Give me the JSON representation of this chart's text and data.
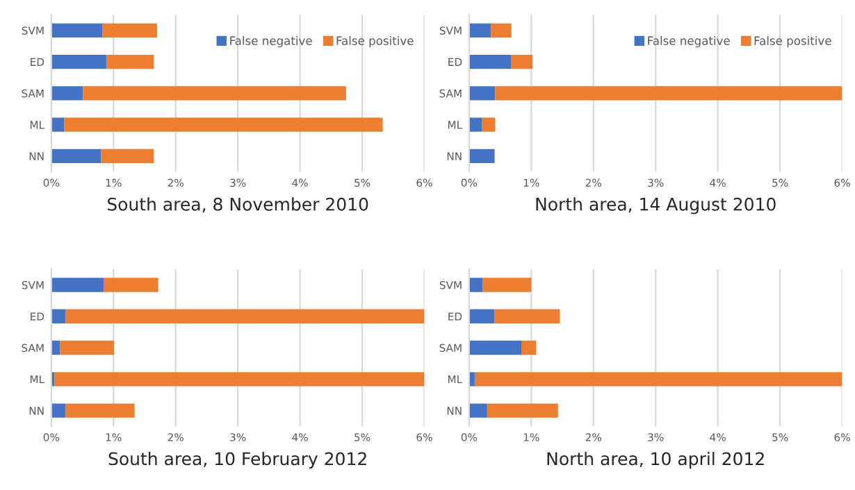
{
  "chart_data": [
    {
      "type": "bar",
      "orientation": "horizontal",
      "stacked": true,
      "title": "South area, 8 November 2010",
      "categories": [
        "SVM",
        "ED",
        "SAM",
        "ML",
        "NN"
      ],
      "series": [
        {
          "name": "False negative",
          "color": "#4472c4",
          "values": [
            0.82,
            0.89,
            0.51,
            0.21,
            0.8
          ]
        },
        {
          "name": "False positive",
          "color": "#ed7d31",
          "values": [
            0.88,
            0.76,
            4.23,
            5.12,
            0.85
          ]
        }
      ],
      "xlim": [
        0,
        6
      ],
      "xticks": [
        {
          "value": 0,
          "label": "0%"
        },
        {
          "value": 1,
          "label": "1%"
        },
        {
          "value": 2,
          "label": "2%"
        },
        {
          "value": 3,
          "label": "3%"
        },
        {
          "value": 4,
          "label": "4%"
        },
        {
          "value": 5,
          "label": "5%"
        },
        {
          "value": 6,
          "label": "6%"
        }
      ],
      "grid": "x",
      "legend": "top right"
    },
    {
      "type": "bar",
      "orientation": "horizontal",
      "stacked": true,
      "title": "North area, 14 August 2010",
      "categories": [
        "SVM",
        "ED",
        "SAM",
        "ML",
        "NN"
      ],
      "series": [
        {
          "name": "False negative",
          "color": "#4472c4",
          "values": [
            0.35,
            0.68,
            0.42,
            0.21,
            0.41
          ]
        },
        {
          "name": "False positive",
          "color": "#ed7d31",
          "values": [
            0.33,
            0.34,
            5.58,
            0.21,
            null
          ]
        }
      ],
      "xlim": [
        0,
        6
      ],
      "xticks": [
        {
          "value": 0,
          "label": "0%"
        },
        {
          "value": 1,
          "label": "1%"
        },
        {
          "value": 2,
          "label": "2%"
        },
        {
          "value": 3,
          "label": "3%"
        },
        {
          "value": 4,
          "label": "4%"
        },
        {
          "value": 5,
          "label": "5%"
        },
        {
          "value": 6,
          "label": "6%"
        }
      ],
      "grid": "x",
      "legend": "top right"
    },
    {
      "type": "bar",
      "orientation": "horizontal",
      "stacked": true,
      "title": "South area, 10 February 2012",
      "categories": [
        "SVM",
        "ED",
        "SAM",
        "ML",
        "NN"
      ],
      "series": [
        {
          "color": "#4472c4",
          "values": [
            0.84,
            0.23,
            0.14,
            0.05,
            0.23
          ]
        },
        {
          "color": "#ed7d31",
          "values": [
            0.88,
            5.77,
            0.87,
            5.95,
            1.11
          ]
        }
      ],
      "xlim": [
        0,
        6
      ],
      "xticks": [
        {
          "value": 0,
          "label": "0%"
        },
        {
          "value": 1,
          "label": "1%"
        },
        {
          "value": 2,
          "label": "2%"
        },
        {
          "value": 3,
          "label": "3%"
        },
        {
          "value": 4,
          "label": "4%"
        },
        {
          "value": 5,
          "label": "5%"
        },
        {
          "value": 6,
          "label": "6%"
        }
      ],
      "grid": "x"
    },
    {
      "type": "bar",
      "orientation": "horizontal",
      "stacked": true,
      "title": "North area, 10 april 2012",
      "categories": [
        "SVM",
        "ED",
        "SAM",
        "ML",
        "NN"
      ],
      "series": [
        {
          "color": "#4472c4",
          "values": [
            0.22,
            0.41,
            0.84,
            0.09,
            0.29
          ]
        },
        {
          "color": "#ed7d31",
          "values": [
            0.78,
            1.05,
            0.24,
            5.91,
            1.14
          ]
        }
      ],
      "xlim": [
        0,
        6
      ],
      "xticks": [
        {
          "value": 0,
          "label": "0%"
        },
        {
          "value": 1,
          "label": "1%"
        },
        {
          "value": 2,
          "label": "2%"
        },
        {
          "value": 3,
          "label": "3%"
        },
        {
          "value": 4,
          "label": "4%"
        },
        {
          "value": 5,
          "label": "5%"
        },
        {
          "value": 6,
          "label": "6%"
        }
      ],
      "grid": "x"
    }
  ]
}
